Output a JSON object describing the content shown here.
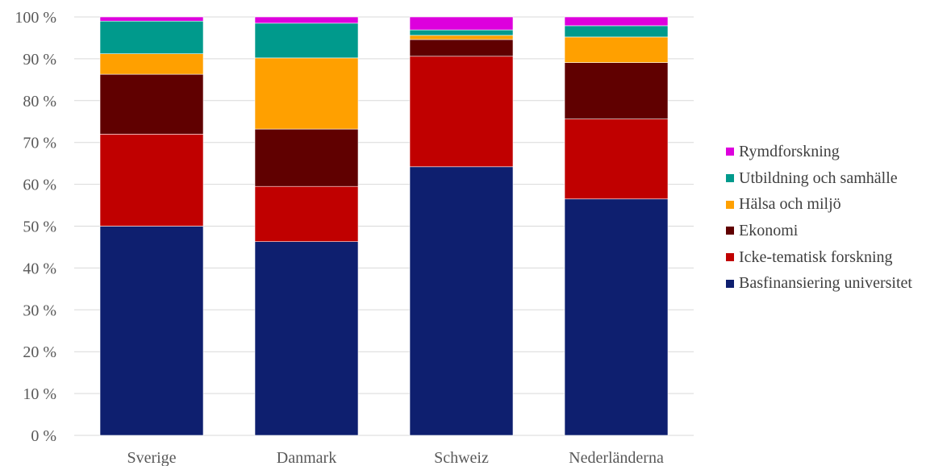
{
  "chart_data": {
    "type": "bar",
    "stacked": true,
    "title": "",
    "xlabel": "",
    "ylabel": "",
    "ylim": [
      0,
      100
    ],
    "yticks": [
      "0 %",
      "10 %",
      "20 %",
      "30 %",
      "40 %",
      "50 %",
      "60 %",
      "70 %",
      "80 %",
      "90 %",
      "100 %"
    ],
    "grid": true,
    "legend_position": "right",
    "categories": [
      "Sverige",
      "Danmark",
      "Schweiz",
      "Nederländerna"
    ],
    "series": [
      {
        "name": "Basfinansiering universitet",
        "color": "#0E1F6F",
        "values": [
          50.0,
          46.3,
          64.2,
          56.5
        ]
      },
      {
        "name": "Icke-tematisk forskning",
        "color": "#C00000",
        "values": [
          22.0,
          13.2,
          26.4,
          19.1
        ]
      },
      {
        "name": "Ekonomi",
        "color": "#600000",
        "values": [
          14.3,
          13.7,
          4.0,
          13.5
        ]
      },
      {
        "name": "Hälsa och miljö",
        "color": "#FFA000",
        "values": [
          4.9,
          17.0,
          1.0,
          6.1
        ]
      },
      {
        "name": "Utbildning och samhälle",
        "color": "#009A8C",
        "values": [
          7.8,
          8.3,
          1.3,
          2.7
        ]
      },
      {
        "name": "Rymdforskning",
        "color": "#DD00DD",
        "values": [
          1.0,
          1.5,
          3.1,
          2.1
        ]
      }
    ]
  }
}
